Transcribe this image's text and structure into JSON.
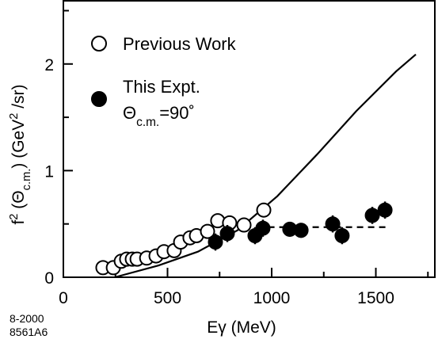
{
  "chart_data": {
    "type": "scatter",
    "xlabel": [
      {
        "text": "E"
      },
      {
        "text": "γ"
      },
      {
        "text": " (MeV)"
      }
    ],
    "ylabel": [
      {
        "text": "f"
      },
      {
        "text": "2",
        "sup": true
      },
      {
        "text": " (Θ"
      },
      {
        "text": "c.m.",
        "sub": true
      },
      {
        "text": ") (GeV"
      },
      {
        "text": "2",
        "sup": true
      },
      {
        "text": " /sr)"
      }
    ],
    "annotation": [
      {
        "text": "Θ"
      },
      {
        "text": "c.m.",
        "sub": true
      },
      {
        "text": "=90˚"
      }
    ],
    "footnote": [
      "8-2000",
      "8561A6"
    ],
    "xlim": [
      0,
      1787
    ],
    "ylim": [
      0,
      2.6
    ],
    "xticks": [
      0,
      500,
      1000,
      1500
    ],
    "yticks": [
      0,
      1,
      2
    ],
    "xminor": [
      250,
      750,
      1250,
      1750
    ],
    "yminor": [
      0.5,
      1.5,
      2.5
    ],
    "series": [
      {
        "name": "Previous Work",
        "marker": "open",
        "color": "#000",
        "x": [
          190,
          240,
          278,
          304,
          331,
          354,
          400,
          445,
          483,
          532,
          563,
          608,
          639,
          692,
          741,
          798,
          867,
          962
        ],
        "values": [
          0.09,
          0.09,
          0.15,
          0.17,
          0.17,
          0.17,
          0.18,
          0.2,
          0.24,
          0.25,
          0.33,
          0.37,
          0.39,
          0.43,
          0.53,
          0.51,
          0.49,
          0.63
        ]
      },
      {
        "name": "This Expt.",
        "marker": "filled",
        "color": "#000",
        "x": [
          730,
          787,
          920,
          958,
          1087,
          1141,
          1293,
          1338,
          1483,
          1544
        ],
        "values": [
          0.33,
          0.41,
          0.39,
          0.46,
          0.45,
          0.44,
          0.5,
          0.39,
          0.58,
          0.63
        ],
        "errors": [
          0.08,
          0.08,
          0.08,
          0.08,
          0.07,
          0.07,
          0.08,
          0.08,
          0.08,
          0.08
        ]
      }
    ],
    "lines": [
      {
        "style": "solid",
        "x": [
          247,
          456,
          646,
          836,
          1027,
          1217,
          1407,
          1597,
          1692
        ],
        "values": [
          0,
          0.11,
          0.24,
          0.44,
          0.76,
          1.15,
          1.56,
          1.93,
          2.09
        ]
      },
      {
        "style": "dashed",
        "x": [
          930,
          1560
        ],
        "values": [
          0.47,
          0.47
        ]
      }
    ]
  }
}
